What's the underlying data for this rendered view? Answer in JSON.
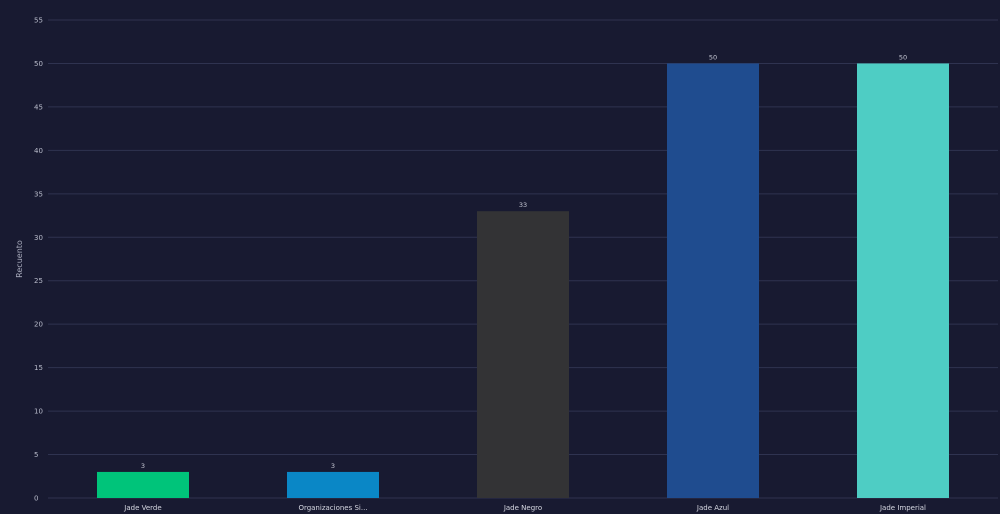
{
  "chart_data": {
    "type": "bar",
    "categories": [
      "Jade Verde",
      "Organizaciones Si...",
      "Jade Negro",
      "Jade Azul",
      "Jade Imperial"
    ],
    "values": [
      3,
      3,
      33,
      50,
      50
    ],
    "colors": [
      "#00c47a",
      "#0a87c6",
      "#333335",
      "#1f4c8f",
      "#4ecdc4"
    ],
    "data_labels": [
      "3",
      "3",
      "33",
      "50",
      "50"
    ],
    "title": "",
    "xlabel": "",
    "ylabel": "Recuento",
    "ylim": [
      0,
      55
    ],
    "yticks": [
      0,
      5,
      10,
      15,
      20,
      25,
      30,
      35,
      40,
      45,
      50,
      55
    ],
    "grid": true,
    "background": "#181a31"
  }
}
